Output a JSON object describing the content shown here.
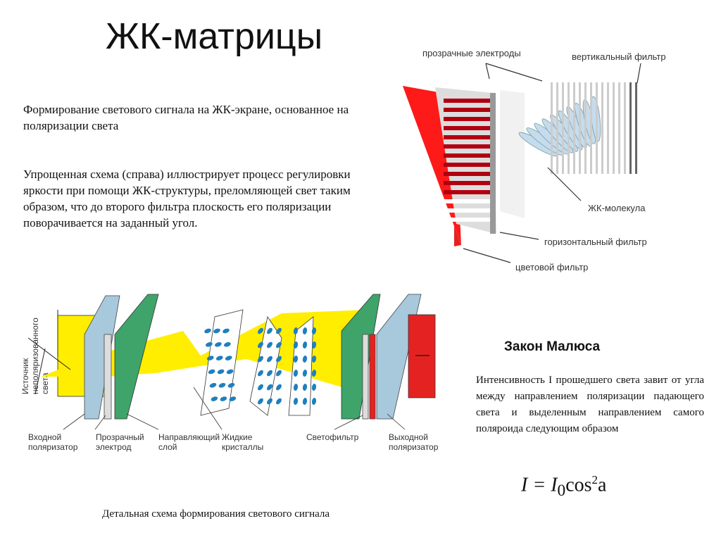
{
  "title": "ЖК-матрицы",
  "paragraphs": [
    "Формирование светового сигнала на ЖК-экране, основанное на поляризации света",
    "Упрощенная схема (справа) иллюстрирует процесс регулировки яркости при помощи ЖК-структуры, преломляющей свет таким образом, что до второго фильтра плоскость его поляризации поворачивается на заданный угол."
  ],
  "top_diagram": {
    "labels": {
      "electrodes": "прозрачные электроды",
      "vertical_filter": "вертикальный фильтр",
      "lc_molecule": "ЖК-молекула",
      "horizontal_filter": "горизонтальный фильтр",
      "color_filter": "цветовой фильтр"
    }
  },
  "bottom_diagram": {
    "source_label": [
      "Источник",
      "неполяризованного",
      "света"
    ],
    "labels": [
      [
        "Входной",
        "поляризатор"
      ],
      [
        "Прозрачный",
        "электрод"
      ],
      [
        "Направляющий",
        "слой"
      ],
      [
        "Жидкие",
        "кристаллы"
      ],
      [
        "Светофильтр"
      ],
      [
        "Выходной",
        "поляризатор"
      ]
    ],
    "caption": "Детальная схема формирования светового сигнала"
  },
  "malus": {
    "heading": "Закон Малюса",
    "text": "Интенсивность I прошедшего света завит от угла между направлением поляризации падающего света и выделенным направлением самого поляроида следующим образом",
    "formula": {
      "lhs": "I = I",
      "sub": "0",
      "fn": "cos",
      "sup": "2",
      "arg": "a"
    }
  },
  "colors": {
    "red": "#e52222",
    "yellow": "#ffee00",
    "green": "#3fa46a",
    "lightblue": "#a8c8dc",
    "blue": "#1f7fbf"
  }
}
